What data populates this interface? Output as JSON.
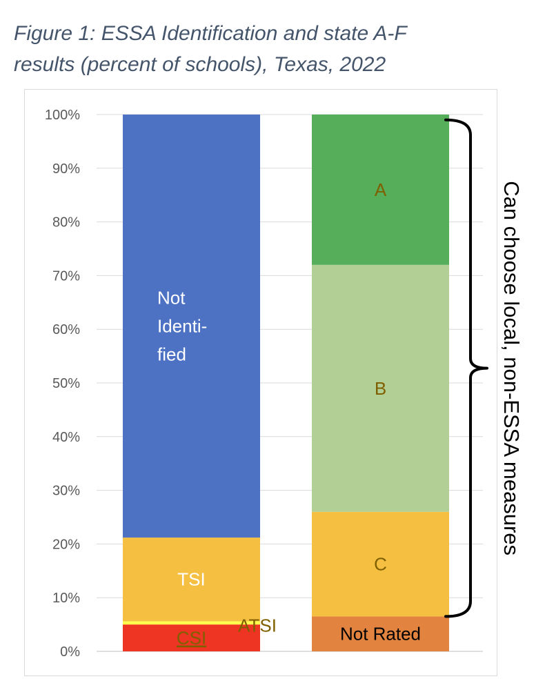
{
  "figure_title_line1": "Figure 1: ESSA Identification and state A-F",
  "figure_title_line2": "results (percent of schools), Texas, 2022",
  "chart_data": {
    "type": "bar",
    "stacked": true,
    "title": "Figure 1: ESSA Identification and state A-F results (percent of schools), Texas, 2022",
    "xlabel": "",
    "ylabel": "",
    "ylim": [
      0,
      100
    ],
    "y_ticks": [
      "0%",
      "10%",
      "20%",
      "30%",
      "40%",
      "50%",
      "60%",
      "70%",
      "80%",
      "90%",
      "100%"
    ],
    "grid": true,
    "legend": "none",
    "bars": [
      {
        "segments": [
          {
            "label": "CSI",
            "value": 5.0,
            "color": "#ee3524",
            "label_color": "#7f6000",
            "underline": true
          },
          {
            "label": "ATSI",
            "value": 0.6,
            "color": "#ffff4d",
            "label_color": "#7f6000",
            "label_outside": true
          },
          {
            "label": "TSI",
            "value": 15.6,
            "color": "#f5bf42",
            "label_color": "#ffffff"
          },
          {
            "label": "Not Identi- fied",
            "label_lines": [
              "Not",
              "Identi-",
              "fied"
            ],
            "value": 78.8,
            "color": "#4d72c4",
            "label_color": "#ffffff"
          }
        ]
      },
      {
        "segments": [
          {
            "label": "Not Rated",
            "value": 6.5,
            "color": "#e2843f",
            "label_color": "#000000"
          },
          {
            "label": "C",
            "value": 19.5,
            "color": "#f5bf42",
            "label_color": "#7f6000"
          },
          {
            "label": "B",
            "value": 46.0,
            "color": "#b2cf95",
            "label_color": "#7f6000"
          },
          {
            "label": "A",
            "value": 28.0,
            "color": "#56ad5a",
            "label_color": "#7f6000"
          }
        ]
      }
    ],
    "annotation": {
      "text": "Can choose local, non-ESSA measures",
      "bracket_from": 6.5,
      "bracket_to": 99
    }
  }
}
